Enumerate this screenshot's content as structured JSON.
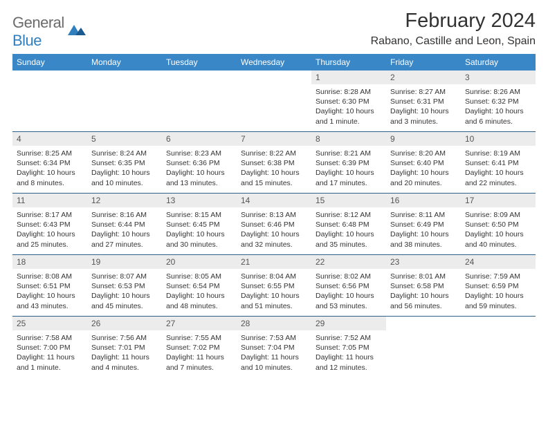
{
  "logo": {
    "general": "General",
    "blue": "Blue"
  },
  "title": "February 2024",
  "location": "Rabano, Castille and Leon, Spain",
  "colors": {
    "header_bg": "#3a87c8",
    "header_text": "#ffffff",
    "daynum_bg": "#ececec",
    "border": "#2a5f8a",
    "logo_gray": "#6b6b6b",
    "logo_blue": "#2f7fbf"
  },
  "weekdays": [
    "Sunday",
    "Monday",
    "Tuesday",
    "Wednesday",
    "Thursday",
    "Friday",
    "Saturday"
  ],
  "weeks": [
    [
      null,
      null,
      null,
      null,
      {
        "n": "1",
        "sunrise": "Sunrise: 8:28 AM",
        "sunset": "Sunset: 6:30 PM",
        "daylight": "Daylight: 10 hours and 1 minute."
      },
      {
        "n": "2",
        "sunrise": "Sunrise: 8:27 AM",
        "sunset": "Sunset: 6:31 PM",
        "daylight": "Daylight: 10 hours and 3 minutes."
      },
      {
        "n": "3",
        "sunrise": "Sunrise: 8:26 AM",
        "sunset": "Sunset: 6:32 PM",
        "daylight": "Daylight: 10 hours and 6 minutes."
      }
    ],
    [
      {
        "n": "4",
        "sunrise": "Sunrise: 8:25 AM",
        "sunset": "Sunset: 6:34 PM",
        "daylight": "Daylight: 10 hours and 8 minutes."
      },
      {
        "n": "5",
        "sunrise": "Sunrise: 8:24 AM",
        "sunset": "Sunset: 6:35 PM",
        "daylight": "Daylight: 10 hours and 10 minutes."
      },
      {
        "n": "6",
        "sunrise": "Sunrise: 8:23 AM",
        "sunset": "Sunset: 6:36 PM",
        "daylight": "Daylight: 10 hours and 13 minutes."
      },
      {
        "n": "7",
        "sunrise": "Sunrise: 8:22 AM",
        "sunset": "Sunset: 6:38 PM",
        "daylight": "Daylight: 10 hours and 15 minutes."
      },
      {
        "n": "8",
        "sunrise": "Sunrise: 8:21 AM",
        "sunset": "Sunset: 6:39 PM",
        "daylight": "Daylight: 10 hours and 17 minutes."
      },
      {
        "n": "9",
        "sunrise": "Sunrise: 8:20 AM",
        "sunset": "Sunset: 6:40 PM",
        "daylight": "Daylight: 10 hours and 20 minutes."
      },
      {
        "n": "10",
        "sunrise": "Sunrise: 8:19 AM",
        "sunset": "Sunset: 6:41 PM",
        "daylight": "Daylight: 10 hours and 22 minutes."
      }
    ],
    [
      {
        "n": "11",
        "sunrise": "Sunrise: 8:17 AM",
        "sunset": "Sunset: 6:43 PM",
        "daylight": "Daylight: 10 hours and 25 minutes."
      },
      {
        "n": "12",
        "sunrise": "Sunrise: 8:16 AM",
        "sunset": "Sunset: 6:44 PM",
        "daylight": "Daylight: 10 hours and 27 minutes."
      },
      {
        "n": "13",
        "sunrise": "Sunrise: 8:15 AM",
        "sunset": "Sunset: 6:45 PM",
        "daylight": "Daylight: 10 hours and 30 minutes."
      },
      {
        "n": "14",
        "sunrise": "Sunrise: 8:13 AM",
        "sunset": "Sunset: 6:46 PM",
        "daylight": "Daylight: 10 hours and 32 minutes."
      },
      {
        "n": "15",
        "sunrise": "Sunrise: 8:12 AM",
        "sunset": "Sunset: 6:48 PM",
        "daylight": "Daylight: 10 hours and 35 minutes."
      },
      {
        "n": "16",
        "sunrise": "Sunrise: 8:11 AM",
        "sunset": "Sunset: 6:49 PM",
        "daylight": "Daylight: 10 hours and 38 minutes."
      },
      {
        "n": "17",
        "sunrise": "Sunrise: 8:09 AM",
        "sunset": "Sunset: 6:50 PM",
        "daylight": "Daylight: 10 hours and 40 minutes."
      }
    ],
    [
      {
        "n": "18",
        "sunrise": "Sunrise: 8:08 AM",
        "sunset": "Sunset: 6:51 PM",
        "daylight": "Daylight: 10 hours and 43 minutes."
      },
      {
        "n": "19",
        "sunrise": "Sunrise: 8:07 AM",
        "sunset": "Sunset: 6:53 PM",
        "daylight": "Daylight: 10 hours and 45 minutes."
      },
      {
        "n": "20",
        "sunrise": "Sunrise: 8:05 AM",
        "sunset": "Sunset: 6:54 PM",
        "daylight": "Daylight: 10 hours and 48 minutes."
      },
      {
        "n": "21",
        "sunrise": "Sunrise: 8:04 AM",
        "sunset": "Sunset: 6:55 PM",
        "daylight": "Daylight: 10 hours and 51 minutes."
      },
      {
        "n": "22",
        "sunrise": "Sunrise: 8:02 AM",
        "sunset": "Sunset: 6:56 PM",
        "daylight": "Daylight: 10 hours and 53 minutes."
      },
      {
        "n": "23",
        "sunrise": "Sunrise: 8:01 AM",
        "sunset": "Sunset: 6:58 PM",
        "daylight": "Daylight: 10 hours and 56 minutes."
      },
      {
        "n": "24",
        "sunrise": "Sunrise: 7:59 AM",
        "sunset": "Sunset: 6:59 PM",
        "daylight": "Daylight: 10 hours and 59 minutes."
      }
    ],
    [
      {
        "n": "25",
        "sunrise": "Sunrise: 7:58 AM",
        "sunset": "Sunset: 7:00 PM",
        "daylight": "Daylight: 11 hours and 1 minute."
      },
      {
        "n": "26",
        "sunrise": "Sunrise: 7:56 AM",
        "sunset": "Sunset: 7:01 PM",
        "daylight": "Daylight: 11 hours and 4 minutes."
      },
      {
        "n": "27",
        "sunrise": "Sunrise: 7:55 AM",
        "sunset": "Sunset: 7:02 PM",
        "daylight": "Daylight: 11 hours and 7 minutes."
      },
      {
        "n": "28",
        "sunrise": "Sunrise: 7:53 AM",
        "sunset": "Sunset: 7:04 PM",
        "daylight": "Daylight: 11 hours and 10 minutes."
      },
      {
        "n": "29",
        "sunrise": "Sunrise: 7:52 AM",
        "sunset": "Sunset: 7:05 PM",
        "daylight": "Daylight: 11 hours and 12 minutes."
      },
      null,
      null
    ]
  ]
}
